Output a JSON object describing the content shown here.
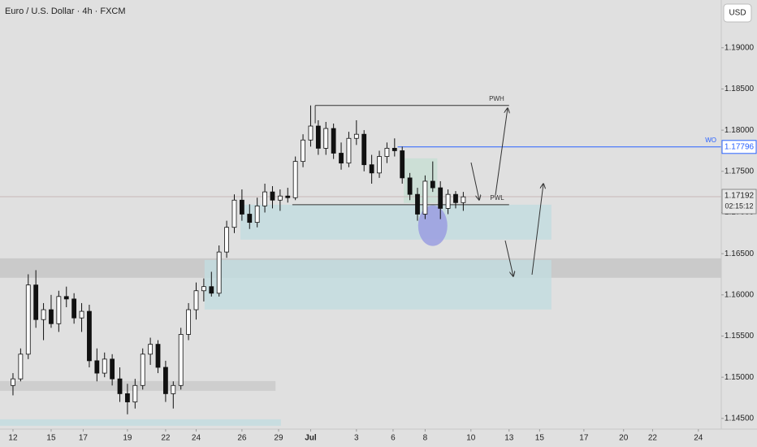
{
  "chart_data": {
    "type": "candlestick",
    "title": "Euro / U.S. Dollar · 4h · FXCM",
    "currency": "USD",
    "xlim": [
      -0.85,
      46.4
    ],
    "ylim": [
      1.1437,
      1.1958
    ],
    "grid": false,
    "xticks": [
      {
        "value": 0,
        "label": "12"
      },
      {
        "value": 2.5,
        "label": "15"
      },
      {
        "value": 4.6,
        "label": "17"
      },
      {
        "value": 7.5,
        "label": "19"
      },
      {
        "value": 10,
        "label": "22"
      },
      {
        "value": 12,
        "label": "24"
      },
      {
        "value": 15,
        "label": "26"
      },
      {
        "value": 17.4,
        "label": "29"
      },
      {
        "value": 19.5,
        "label": "Jul"
      },
      {
        "value": 22.5,
        "label": "3"
      },
      {
        "value": 24.9,
        "label": "6"
      },
      {
        "value": 27,
        "label": "8"
      },
      {
        "value": 30,
        "label": "10"
      },
      {
        "value": 32.5,
        "label": "13"
      },
      {
        "value": 34.5,
        "label": "15"
      },
      {
        "value": 37.4,
        "label": "17"
      },
      {
        "value": 40,
        "label": "20"
      },
      {
        "value": 41.9,
        "label": "22"
      },
      {
        "value": 44.9,
        "label": "24"
      }
    ],
    "yticks": [
      {
        "value": 1.145,
        "label": "1.14500"
      },
      {
        "value": 1.15,
        "label": "1.15000"
      },
      {
        "value": 1.155,
        "label": "1.15500"
      },
      {
        "value": 1.16,
        "label": "1.16000"
      },
      {
        "value": 1.165,
        "label": "1.16500"
      },
      {
        "value": 1.17,
        "label": "1.17000"
      },
      {
        "value": 1.175,
        "label": "1.17500"
      },
      {
        "value": 1.18,
        "label": "1.18000"
      },
      {
        "value": 1.185,
        "label": "1.18500"
      },
      {
        "value": 1.19,
        "label": "1.19000"
      }
    ],
    "up_color": "#ffffff",
    "down_color": "#111111",
    "edge_color": "#111111",
    "candles": {
      "x": [
        0,
        0.5,
        1,
        1.5,
        2,
        2.5,
        3,
        3.5,
        4,
        4.5,
        5,
        5.5,
        6,
        6.5,
        7,
        7.5,
        8,
        8.5,
        9,
        9.5,
        10,
        10.5,
        11,
        11.5,
        12,
        12.5,
        13,
        13.5,
        14,
        14.5,
        15,
        15.5,
        16,
        16.5,
        17,
        17.5,
        18,
        18.5,
        19,
        19.5,
        20,
        20.5,
        21,
        21.5,
        22,
        22.5,
        23,
        23.5,
        24,
        24.5,
        25,
        25.5,
        26,
        26.5,
        27,
        27.5,
        28,
        28.5,
        29,
        29.5
      ],
      "open": [
        1.149,
        1.1498,
        1.1528,
        1.1612,
        1.157,
        1.1582,
        1.1565,
        1.1598,
        1.1595,
        1.1572,
        1.158,
        1.152,
        1.1505,
        1.1522,
        1.1498,
        1.148,
        1.147,
        1.149,
        1.1528,
        1.154,
        1.1512,
        1.148,
        1.149,
        1.1552,
        1.1582,
        1.1605,
        1.161,
        1.1602,
        1.1652,
        1.1682,
        1.1715,
        1.1698,
        1.1688,
        1.1708,
        1.1725,
        1.1715,
        1.172,
        1.1718,
        1.1762,
        1.1788,
        1.1805,
        1.1778,
        1.1802,
        1.1772,
        1.176,
        1.179,
        1.1795,
        1.1758,
        1.1748,
        1.1768,
        1.1778,
        1.1775,
        1.1742,
        1.1722,
        1.1698,
        1.1738,
        1.173,
        1.1705,
        1.1722,
        1.1712
      ],
      "high": [
        1.1505,
        1.1535,
        1.1625,
        1.163,
        1.159,
        1.16,
        1.1605,
        1.161,
        1.1602,
        1.159,
        1.1588,
        1.1535,
        1.153,
        1.1528,
        1.1512,
        1.1492,
        1.1498,
        1.1535,
        1.1548,
        1.1545,
        1.152,
        1.1495,
        1.156,
        1.159,
        1.1615,
        1.162,
        1.1628,
        1.166,
        1.169,
        1.1722,
        1.1728,
        1.171,
        1.1718,
        1.1735,
        1.1732,
        1.1728,
        1.173,
        1.1768,
        1.1795,
        1.183,
        1.1812,
        1.181,
        1.1808,
        1.1785,
        1.1798,
        1.1812,
        1.18,
        1.177,
        1.1775,
        1.1785,
        1.179,
        1.178,
        1.1748,
        1.173,
        1.1745,
        1.1762,
        1.1738,
        1.1728,
        1.1726,
        1.1725
      ],
      "low": [
        1.1478,
        1.1495,
        1.1522,
        1.156,
        1.1545,
        1.156,
        1.1555,
        1.1585,
        1.1565,
        1.1555,
        1.1512,
        1.1495,
        1.15,
        1.149,
        1.147,
        1.1455,
        1.1462,
        1.1485,
        1.1515,
        1.1505,
        1.147,
        1.1462,
        1.1485,
        1.1545,
        1.157,
        1.1592,
        1.1598,
        1.1598,
        1.1645,
        1.1675,
        1.169,
        1.168,
        1.1682,
        1.17,
        1.1705,
        1.1702,
        1.1712,
        1.1715,
        1.1755,
        1.178,
        1.177,
        1.177,
        1.1765,
        1.1752,
        1.1755,
        1.1782,
        1.175,
        1.1735,
        1.1742,
        1.176,
        1.1768,
        1.1735,
        1.1715,
        1.169,
        1.1692,
        1.1725,
        1.1692,
        1.1698,
        1.1705,
        1.1702
      ],
      "close": [
        1.1498,
        1.1528,
        1.1612,
        1.157,
        1.1582,
        1.1565,
        1.1598,
        1.1595,
        1.1572,
        1.158,
        1.152,
        1.1505,
        1.1522,
        1.1498,
        1.148,
        1.147,
        1.149,
        1.1528,
        1.154,
        1.1512,
        1.148,
        1.149,
        1.1552,
        1.1582,
        1.1605,
        1.161,
        1.1602,
        1.1652,
        1.1682,
        1.1715,
        1.1698,
        1.1688,
        1.1708,
        1.1725,
        1.1715,
        1.172,
        1.1718,
        1.1762,
        1.1788,
        1.1805,
        1.1778,
        1.1802,
        1.1772,
        1.176,
        1.179,
        1.1795,
        1.1758,
        1.1748,
        1.1768,
        1.1778,
        1.1775,
        1.1742,
        1.1722,
        1.1698,
        1.1738,
        1.173,
        1.1705,
        1.1722,
        1.1712,
        1.1719
      ]
    },
    "zones": [
      {
        "x": [
          -0.85,
          46.4
        ],
        "y": [
          1.16207,
          1.16444
        ],
        "color": "#c6c6c6"
      },
      {
        "x": [
          12.55,
          35.27
        ],
        "y": [
          1.15822,
          1.16424
        ],
        "color": "#c3dcdf"
      },
      {
        "x": [
          14.9,
          35.27
        ],
        "y": [
          1.16671,
          1.17095
        ],
        "color": "#c3dcdf"
      },
      {
        "x": [
          25.6,
          27.8
        ],
        "y": [
          1.17115,
          1.17658
        ],
        "color": "#c8ded3"
      },
      {
        "x": [
          -0.85,
          17.2
        ],
        "y": [
          1.14835,
          1.14953
        ],
        "color": "#cacaca"
      },
      {
        "x": [
          -0.85,
          17.55
        ],
        "y": [
          1.1441,
          1.14489
        ],
        "color": "#c3dcdf"
      }
    ],
    "levels": [
      {
        "name": "PWH",
        "value": 1.183,
        "x": [
          19.8,
          32.5
        ],
        "color": "#333333"
      },
      {
        "name": "PWL",
        "value": 1.17095,
        "x": [
          18.3,
          32.5
        ],
        "color": "#333333"
      },
      {
        "name": "WO",
        "value": 1.17796,
        "x": [
          25.2,
          46.4
        ],
        "color": "#2962ff",
        "price_label": "1.17796"
      }
    ],
    "last_price": {
      "value": 1.17192,
      "label": "1.17192",
      "countdown": "02:15:12"
    },
    "highlight": {
      "x": 27.5,
      "y": 1.1684,
      "color": "#9a9ee0"
    }
  }
}
